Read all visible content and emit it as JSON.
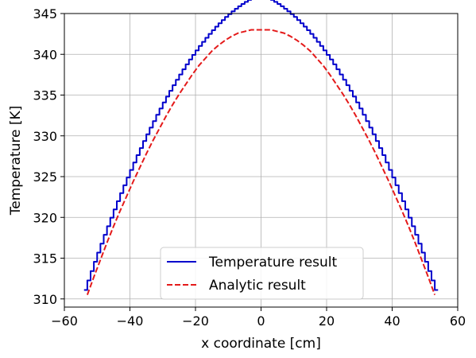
{
  "chart_data": {
    "type": "line",
    "xlabel": "x coordinate [cm]",
    "ylabel": "Temperature [K]",
    "xlim": [
      -60,
      60
    ],
    "ylim": [
      309,
      345
    ],
    "xticks": [
      -60,
      -40,
      -20,
      0,
      20,
      40,
      60
    ],
    "xtick_labels": [
      "−60",
      "−40",
      "−20",
      "0",
      "20",
      "40",
      "60"
    ],
    "yticks": [
      310,
      315,
      320,
      325,
      330,
      335,
      340,
      345
    ],
    "ytick_labels": [
      "310",
      "315",
      "320",
      "325",
      "330",
      "335",
      "340",
      "345"
    ],
    "grid": true,
    "legend_position": "lower-center",
    "series": [
      {
        "name": "Temperature result",
        "color": "#0000cc",
        "style": "solid",
        "step": true,
        "x": [
          -53.5,
          -52.5,
          -51.5,
          -50.5,
          -49.5,
          -48.5,
          -47.5,
          -46.5,
          -45.5,
          -44.5,
          -43.5,
          -42.5,
          -41.5,
          -40.5,
          -39.5,
          -38.5,
          -37.5,
          -36.5,
          -35.5,
          -34.5,
          -33.5,
          -32.5,
          -31.5,
          -30.5,
          -29.5,
          -28.5,
          -27.5,
          -26.5,
          -25.5,
          -24.5,
          -23.5,
          -22.5,
          -21.5,
          -20.5,
          -19.5,
          -18.5,
          -17.5,
          -16.5,
          -15.5,
          -14.5,
          -13.5,
          -12.5,
          -11.5,
          -10.5,
          -9.5,
          -8.5,
          -7.5,
          -6.5,
          -5.5,
          -4.5,
          -3.5,
          -2.5,
          -1.5,
          -0.5,
          0.5,
          1.5,
          2.5,
          3.5,
          4.5,
          5.5,
          6.5,
          7.5,
          8.5,
          9.5,
          10.5,
          11.5,
          12.5,
          13.5,
          14.5,
          15.5,
          16.5,
          17.5,
          18.5,
          19.5,
          20.5,
          21.5,
          22.5,
          23.5,
          24.5,
          25.5,
          26.5,
          27.5,
          28.5,
          29.5,
          30.5,
          31.5,
          32.5,
          33.5,
          34.5,
          35.5,
          36.5,
          37.5,
          38.5,
          39.5,
          40.5,
          41.5,
          42.5,
          43.5,
          44.5,
          45.5,
          46.5,
          47.5,
          48.5,
          49.5,
          50.5,
          51.5,
          52.5,
          53.5
        ],
        "y": [
          311.1,
          312.27,
          313.42,
          314.56,
          315.68,
          316.78,
          317.86,
          318.92,
          319.96,
          320.98,
          321.99,
          322.97,
          323.94,
          324.89,
          325.82,
          326.73,
          327.63,
          328.5,
          329.36,
          330.19,
          331.01,
          331.81,
          332.59,
          333.35,
          334.1,
          334.82,
          335.53,
          336.21,
          336.88,
          337.53,
          338.16,
          338.77,
          339.36,
          339.93,
          340.48,
          341.02,
          341.53,
          342.02,
          342.5,
          342.95,
          343.39,
          343.8,
          344.2,
          344.58,
          344.93,
          345.27,
          345.59,
          345.89,
          346.17,
          346.43,
          346.67,
          346.89,
          347.09,
          347.27,
          347.27,
          347.09,
          346.89,
          346.67,
          346.43,
          346.17,
          345.89,
          345.59,
          345.27,
          344.93,
          344.58,
          344.2,
          343.8,
          343.39,
          342.95,
          342.5,
          342.02,
          341.53,
          341.02,
          340.48,
          339.93,
          339.36,
          338.77,
          338.16,
          337.53,
          336.88,
          336.21,
          335.53,
          334.82,
          334.1,
          333.35,
          332.59,
          331.81,
          331.01,
          330.19,
          329.36,
          328.5,
          327.63,
          326.73,
          325.82,
          324.89,
          323.94,
          322.97,
          321.99,
          320.98,
          319.96,
          318.92,
          317.86,
          316.78,
          315.68,
          314.56,
          313.42,
          312.27,
          311.1
        ]
      },
      {
        "name": "Analytic result",
        "color": "#e41a1a",
        "style": "dashed",
        "step": false,
        "x": [
          -53,
          -51,
          -49,
          -47,
          -45,
          -43,
          -41,
          -39,
          -37,
          -35,
          -33,
          -31,
          -29,
          -27,
          -25,
          -23,
          -21,
          -19,
          -17,
          -15,
          -13,
          -11,
          -9,
          -7,
          -5,
          -3,
          -1,
          0,
          1,
          3,
          5,
          7,
          9,
          11,
          13,
          15,
          17,
          19,
          21,
          23,
          25,
          27,
          29,
          31,
          33,
          35,
          37,
          39,
          41,
          43,
          45,
          47,
          49,
          51,
          53
        ],
        "y": [
          310.5,
          312.7,
          314.8,
          316.9,
          318.9,
          320.8,
          322.6,
          324.4,
          326.1,
          327.8,
          329.4,
          330.9,
          332.4,
          333.8,
          335.1,
          336.3,
          337.5,
          338.6,
          339.5,
          340.4,
          341.1,
          341.7,
          342.2,
          342.6,
          342.8,
          343.0,
          343.0,
          343.0,
          343.0,
          343.0,
          342.8,
          342.6,
          342.2,
          341.7,
          341.1,
          340.4,
          339.5,
          338.6,
          337.5,
          336.3,
          335.1,
          333.8,
          332.4,
          330.9,
          329.4,
          327.8,
          326.1,
          324.4,
          322.6,
          320.8,
          318.9,
          316.9,
          314.8,
          312.7,
          310.5
        ]
      }
    ]
  }
}
